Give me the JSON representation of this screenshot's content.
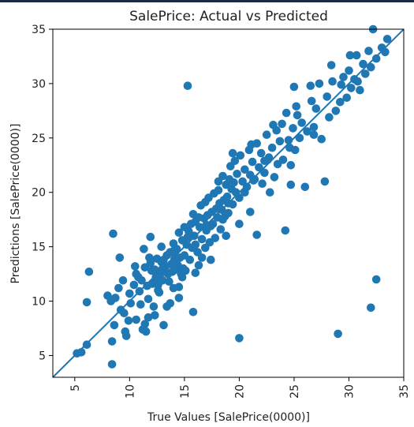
{
  "chart_data": {
    "type": "scatter",
    "title": "SalePrice: Actual vs Predicted",
    "xlabel": "True Values [SalePrice(0000)]",
    "ylabel": "Predictions [SalePrice(0000)]",
    "xlim": [
      3,
      35
    ],
    "ylim": [
      3,
      35
    ],
    "xticks": [
      5,
      10,
      15,
      20,
      25,
      30,
      35
    ],
    "yticks": [
      5,
      10,
      15,
      20,
      25,
      30,
      35
    ],
    "grid": false,
    "marker_color": "#1f77b4",
    "line_color": "#1f77b4",
    "reference_line": {
      "from": [
        3,
        3
      ],
      "to": [
        35,
        35
      ]
    },
    "points": [
      [
        5.2,
        5.2
      ],
      [
        5.6,
        5.3
      ],
      [
        6.1,
        6.0
      ],
      [
        6.1,
        9.9
      ],
      [
        6.3,
        12.7
      ],
      [
        8.0,
        10.5
      ],
      [
        8.3,
        10.0
      ],
      [
        8.4,
        4.2
      ],
      [
        8.5,
        16.2
      ],
      [
        8.6,
        7.8
      ],
      [
        8.7,
        10.3
      ],
      [
        8.4,
        6.3
      ],
      [
        9.0,
        11.2
      ],
      [
        9.1,
        14.0
      ],
      [
        9.2,
        9.2
      ],
      [
        9.5,
        8.9
      ],
      [
        9.7,
        6.8
      ],
      [
        9.9,
        8.2
      ],
      [
        10.0,
        10.7
      ],
      [
        10.1,
        9.8
      ],
      [
        10.4,
        11.5
      ],
      [
        10.6,
        12.5
      ],
      [
        10.8,
        12.2
      ],
      [
        10.9,
        10.9
      ],
      [
        11.0,
        9.7
      ],
      [
        11.1,
        11.9
      ],
      [
        11.2,
        7.4
      ],
      [
        11.3,
        14.8
      ],
      [
        11.4,
        13.1
      ],
      [
        11.5,
        7.2
      ],
      [
        11.6,
        11.4
      ],
      [
        11.7,
        8.5
      ],
      [
        11.7,
        10.2
      ],
      [
        11.9,
        15.9
      ],
      [
        11.9,
        13.5
      ],
      [
        12.0,
        12.8
      ],
      [
        12.1,
        11.6
      ],
      [
        12.2,
        9.5
      ],
      [
        12.3,
        12.9
      ],
      [
        12.4,
        12.2
      ],
      [
        12.5,
        13.9
      ],
      [
        12.6,
        11.5
      ],
      [
        12.7,
        10.8
      ],
      [
        12.8,
        12.5
      ],
      [
        12.9,
        13.6
      ],
      [
        13.0,
        11.9
      ],
      [
        13.1,
        7.8
      ],
      [
        13.1,
        13.8
      ],
      [
        13.2,
        12.8
      ],
      [
        13.3,
        13.2
      ],
      [
        13.4,
        14.2
      ],
      [
        13.5,
        12.5
      ],
      [
        13.6,
        11.8
      ],
      [
        13.7,
        14.5
      ],
      [
        13.7,
        9.8
      ],
      [
        13.8,
        13.4
      ],
      [
        13.9,
        12.7
      ],
      [
        14.0,
        15.3
      ],
      [
        14.0,
        11.2
      ],
      [
        14.1,
        13.9
      ],
      [
        14.2,
        12.9
      ],
      [
        14.3,
        14.8
      ],
      [
        14.4,
        13.3
      ],
      [
        14.5,
        16.3
      ],
      [
        14.5,
        11.3
      ],
      [
        14.6,
        14.0
      ],
      [
        14.7,
        12.5
      ],
      [
        14.8,
        15.6
      ],
      [
        14.9,
        13.0
      ],
      [
        15.0,
        16.8
      ],
      [
        15.0,
        14.2
      ],
      [
        15.1,
        12.8
      ],
      [
        15.2,
        15.2
      ],
      [
        15.3,
        29.8
      ],
      [
        15.4,
        16.4
      ],
      [
        15.5,
        13.8
      ],
      [
        15.6,
        17.1
      ],
      [
        15.7,
        14.9
      ],
      [
        15.8,
        9.0
      ],
      [
        15.9,
        16.0
      ],
      [
        16.0,
        15.2
      ],
      [
        16.0,
        17.3
      ],
      [
        16.2,
        14.5
      ],
      [
        16.3,
        13.3
      ],
      [
        16.4,
        16.8
      ],
      [
        16.5,
        18.8
      ],
      [
        16.6,
        15.7
      ],
      [
        16.8,
        17.6
      ],
      [
        16.9,
        14.9
      ],
      [
        17.0,
        16.5
      ],
      [
        17.1,
        17.9
      ],
      [
        17.2,
        19.5
      ],
      [
        17.3,
        15.4
      ],
      [
        17.4,
        16.9
      ],
      [
        17.5,
        18.2
      ],
      [
        17.6,
        17.1
      ],
      [
        17.7,
        19.9
      ],
      [
        17.8,
        15.8
      ],
      [
        17.9,
        18.5
      ],
      [
        18.0,
        17.7
      ],
      [
        18.1,
        20.2
      ],
      [
        18.2,
        19.0
      ],
      [
        18.3,
        16.6
      ],
      [
        18.4,
        18.4
      ],
      [
        18.5,
        21.5
      ],
      [
        18.6,
        19.3
      ],
      [
        18.7,
        17.8
      ],
      [
        18.8,
        20.7
      ],
      [
        18.9,
        19.6
      ],
      [
        19.0,
        18.1
      ],
      [
        19.1,
        21.2
      ],
      [
        19.2,
        22.4
      ],
      [
        19.3,
        20.3
      ],
      [
        19.4,
        18.9
      ],
      [
        19.5,
        20.9
      ],
      [
        19.6,
        22.9
      ],
      [
        19.7,
        20.0
      ],
      [
        19.8,
        21.7
      ],
      [
        20.0,
        6.6
      ],
      [
        20.0,
        19.5
      ],
      [
        20.1,
        23.4
      ],
      [
        20.3,
        21.0
      ],
      [
        20.5,
        22.1
      ],
      [
        20.7,
        20.5
      ],
      [
        20.9,
        23.9
      ],
      [
        21.0,
        21.6
      ],
      [
        21.2,
        22.8
      ],
      [
        21.4,
        21.2
      ],
      [
        21.6,
        16.1
      ],
      [
        21.6,
        24.5
      ],
      [
        21.8,
        22.3
      ],
      [
        22.0,
        23.6
      ],
      [
        22.1,
        20.8
      ],
      [
        22.3,
        22.9
      ],
      [
        22.5,
        25.3
      ],
      [
        22.7,
        23.2
      ],
      [
        22.8,
        20.0
      ],
      [
        23.0,
        24.1
      ],
      [
        23.2,
        21.4
      ],
      [
        23.4,
        25.7
      ],
      [
        23.5,
        22.6
      ],
      [
        23.7,
        24.7
      ],
      [
        23.9,
        26.3
      ],
      [
        24.0,
        23.0
      ],
      [
        24.2,
        16.5
      ],
      [
        24.3,
        27.3
      ],
      [
        24.5,
        24.8
      ],
      [
        24.7,
        22.5
      ],
      [
        24.9,
        25.9
      ],
      [
        25.0,
        29.7
      ],
      [
        25.1,
        23.9
      ],
      [
        25.3,
        27.1
      ],
      [
        25.5,
        25.0
      ],
      [
        25.7,
        26.4
      ],
      [
        26.0,
        20.5
      ],
      [
        26.2,
        25.6
      ],
      [
        26.5,
        29.8
      ],
      [
        26.8,
        26.0
      ],
      [
        27.0,
        27.7
      ],
      [
        27.3,
        30.0
      ],
      [
        27.5,
        24.9
      ],
      [
        27.8,
        21.0
      ],
      [
        28.0,
        28.8
      ],
      [
        28.2,
        26.9
      ],
      [
        28.5,
        30.2
      ],
      [
        28.8,
        27.5
      ],
      [
        29.0,
        7.0
      ],
      [
        29.2,
        28.3
      ],
      [
        29.5,
        30.6
      ],
      [
        29.8,
        28.7
      ],
      [
        30.0,
        31.2
      ],
      [
        30.2,
        29.6
      ],
      [
        30.5,
        30.4
      ],
      [
        30.7,
        32.6
      ],
      [
        31.0,
        29.4
      ],
      [
        31.3,
        31.8
      ],
      [
        31.5,
        30.9
      ],
      [
        31.8,
        33.0
      ],
      [
        32.0,
        9.4
      ],
      [
        32.0,
        31.5
      ],
      [
        32.2,
        35.0
      ],
      [
        32.5,
        12.0
      ],
      [
        32.5,
        32.3
      ],
      [
        33.0,
        33.3
      ],
      [
        33.3,
        32.9
      ],
      [
        33.5,
        34.1
      ],
      [
        30.8,
        30.2
      ],
      [
        29.3,
        29.9
      ],
      [
        26.8,
        25.3
      ],
      [
        24.7,
        20.7
      ],
      [
        22.3,
        21.8
      ],
      [
        21.0,
        18.2
      ],
      [
        20.0,
        17.1
      ],
      [
        18.8,
        16.0
      ],
      [
        17.4,
        13.8
      ],
      [
        16.0,
        12.6
      ],
      [
        14.5,
        10.3
      ],
      [
        13.4,
        9.5
      ],
      [
        12.3,
        8.7
      ],
      [
        11.4,
        7.9
      ],
      [
        10.6,
        8.3
      ],
      [
        9.6,
        7.2
      ],
      [
        15.8,
        18.0
      ],
      [
        16.9,
        19.1
      ],
      [
        18.1,
        21.0
      ],
      [
        19.4,
        23.6
      ],
      [
        21.1,
        24.4
      ],
      [
        23.1,
        26.2
      ],
      [
        25.2,
        27.9
      ],
      [
        26.6,
        28.4
      ],
      [
        28.4,
        31.7
      ],
      [
        30.1,
        32.6
      ],
      [
        12.9,
        15.0
      ],
      [
        11.8,
        14.0
      ],
      [
        10.5,
        13.2
      ],
      [
        9.4,
        11.9
      ],
      [
        16.3,
        17.7
      ],
      [
        20.5,
        20.0
      ],
      [
        22.6,
        23.0
      ],
      [
        24.6,
        24.1
      ],
      [
        14.0,
        14.6
      ],
      [
        13.0,
        13.0
      ],
      [
        15.3,
        15.9
      ],
      [
        17.0,
        17.0
      ],
      [
        19.0,
        19.0
      ],
      [
        21.3,
        21.1
      ],
      [
        12.6,
        11.0
      ],
      [
        14.8,
        12.2
      ],
      [
        16.6,
        14.0
      ],
      [
        18.5,
        17.5
      ]
    ]
  }
}
